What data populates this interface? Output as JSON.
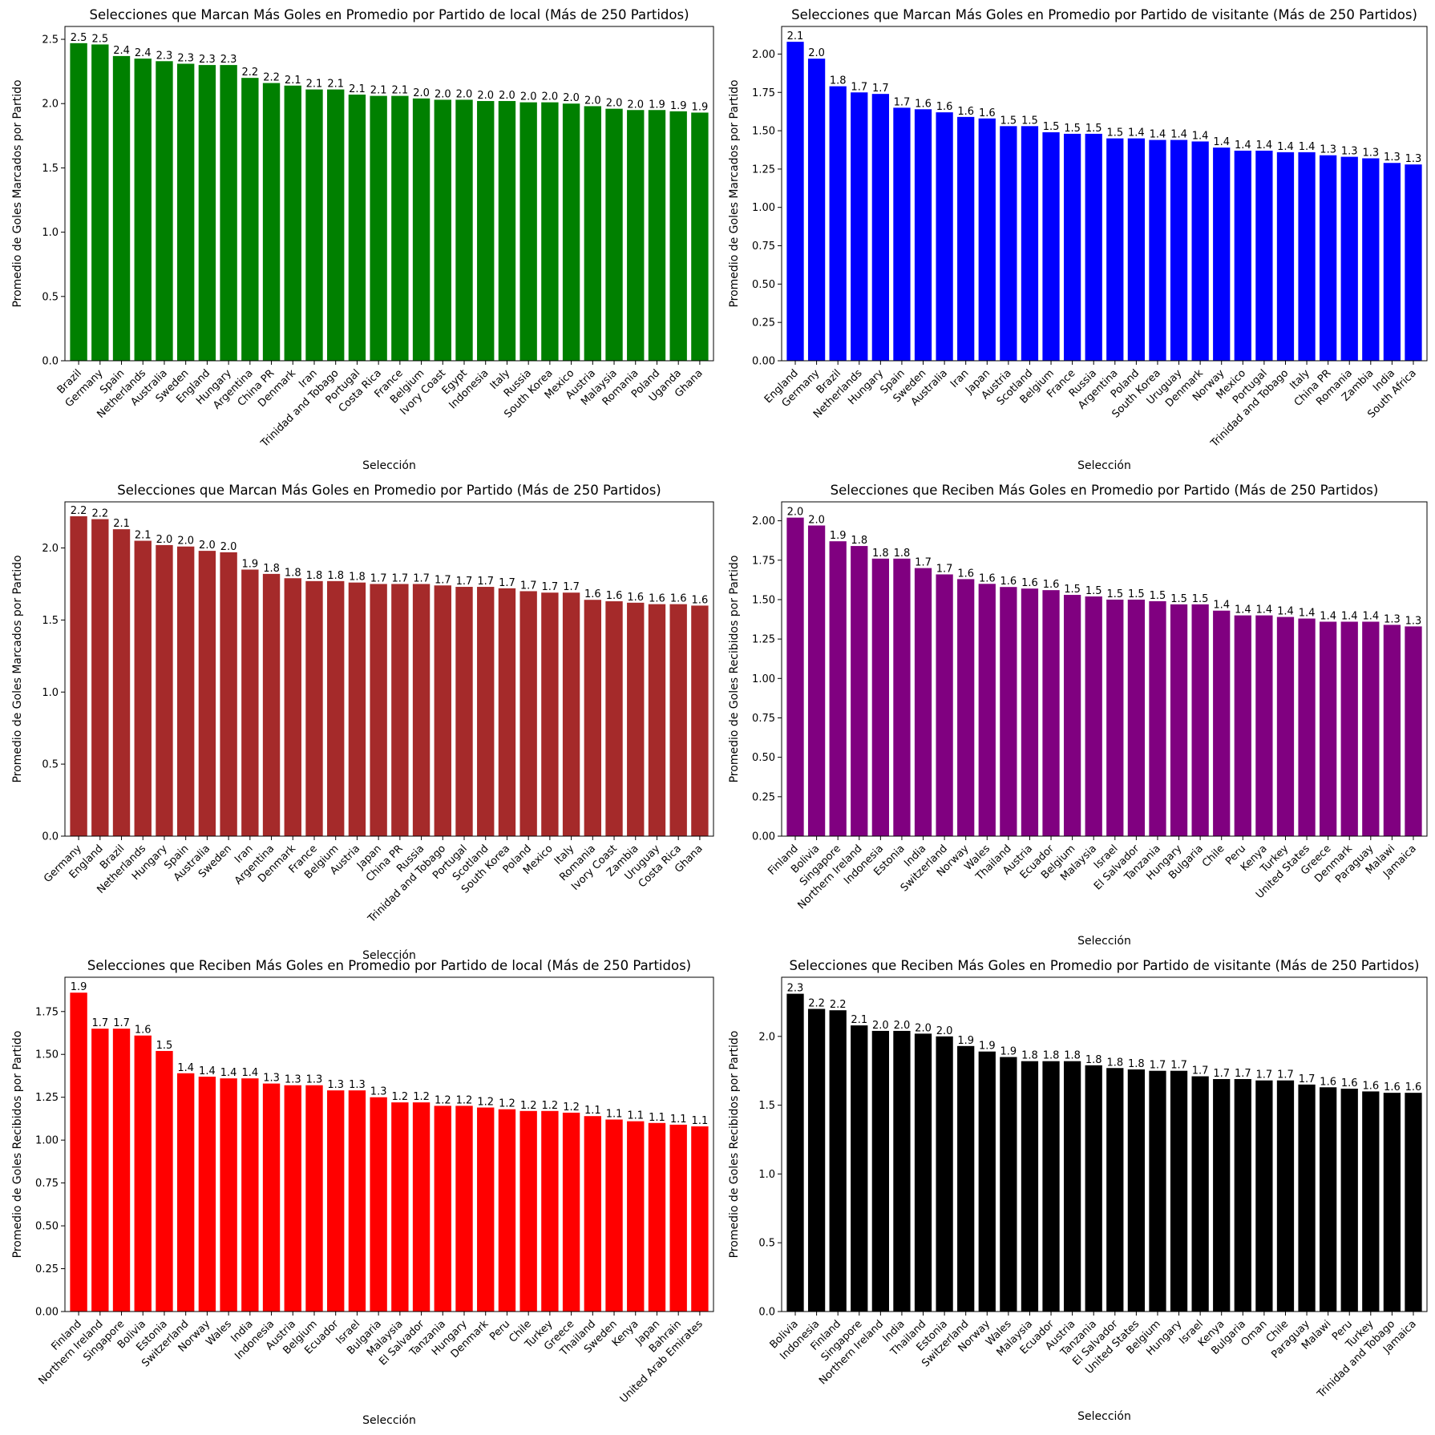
{
  "chart_data": [
    {
      "type": "bar",
      "title": "Selecciones que Marcan Más Goles en Promedio por Partido de local  (Más de 250 Partidos)",
      "xlabel": "Selección",
      "ylabel": "Promedio de Goles Marcados por Partido",
      "color": "#008000",
      "ylim": [
        0,
        2.6
      ],
      "yticks": [
        "0.0",
        "0.5",
        "1.0",
        "1.5",
        "2.0",
        "2.5"
      ],
      "categories": [
        "Brazil",
        "Germany",
        "Spain",
        "Netherlands",
        "Australia",
        "Sweden",
        "England",
        "Hungary",
        "Argentina",
        "China PR",
        "Denmark",
        "Iran",
        "Trinidad and Tobago",
        "Portugal",
        "Costa Rica",
        "France",
        "Belgium",
        "Ivory Coast",
        "Egypt",
        "Indonesia",
        "Italy",
        "Russia",
        "South Korea",
        "Mexico",
        "Austria",
        "Malaysia",
        "Romania",
        "Poland",
        "Uganda",
        "Ghana"
      ],
      "values": [
        2.47,
        2.46,
        2.37,
        2.35,
        2.33,
        2.31,
        2.3,
        2.3,
        2.2,
        2.16,
        2.14,
        2.11,
        2.11,
        2.07,
        2.06,
        2.06,
        2.04,
        2.03,
        2.03,
        2.02,
        2.02,
        2.01,
        2.01,
        2.0,
        1.98,
        1.96,
        1.95,
        1.95,
        1.94,
        1.93
      ],
      "labels": [
        "2.5",
        "2.5",
        "2.4",
        "2.4",
        "2.3",
        "2.3",
        "2.3",
        "2.3",
        "2.2",
        "2.2",
        "2.1",
        "2.1",
        "2.1",
        "2.1",
        "2.1",
        "2.1",
        "2.0",
        "2.0",
        "2.0",
        "2.0",
        "2.0",
        "2.0",
        "2.0",
        "2.0",
        "2.0",
        "2.0",
        "2.0",
        "1.9",
        "1.9",
        "1.9"
      ]
    },
    {
      "type": "bar",
      "title": "Selecciones que Marcan Más Goles en Promedio por Partido de visitante  (Más de 250 Partidos)",
      "xlabel": "Selección",
      "ylabel": "Promedio de Goles Marcados por Partido",
      "color": "#0000ff",
      "ylim": [
        0,
        2.18
      ],
      "yticks": [
        "0.00",
        "0.25",
        "0.50",
        "0.75",
        "1.00",
        "1.25",
        "1.50",
        "1.75",
        "2.00"
      ],
      "categories": [
        "England",
        "Germany",
        "Brazil",
        "Netherlands",
        "Hungary",
        "Spain",
        "Sweden",
        "Australia",
        "Iran",
        "Japan",
        "Austria",
        "Scotland",
        "Belgium",
        "France",
        "Russia",
        "Argentina",
        "Poland",
        "South Korea",
        "Uruguay",
        "Denmark",
        "Norway",
        "Mexico",
        "Portugal",
        "Trinidad and Tobago",
        "Italy",
        "China PR",
        "Romania",
        "Zambia",
        "India",
        "South Africa"
      ],
      "values": [
        2.08,
        1.97,
        1.79,
        1.75,
        1.74,
        1.65,
        1.64,
        1.62,
        1.59,
        1.58,
        1.53,
        1.53,
        1.49,
        1.48,
        1.48,
        1.45,
        1.45,
        1.44,
        1.44,
        1.43,
        1.39,
        1.37,
        1.37,
        1.36,
        1.36,
        1.34,
        1.33,
        1.32,
        1.29,
        1.28
      ],
      "labels": [
        "2.1",
        "2.0",
        "1.8",
        "1.7",
        "1.7",
        "1.7",
        "1.6",
        "1.6",
        "1.6",
        "1.6",
        "1.5",
        "1.5",
        "1.5",
        "1.5",
        "1.5",
        "1.5",
        "1.4",
        "1.4",
        "1.4",
        "1.4",
        "1.4",
        "1.4",
        "1.4",
        "1.4",
        "1.4",
        "1.3",
        "1.3",
        "1.3",
        "1.3",
        "1.3"
      ]
    },
    {
      "type": "bar",
      "title": "Selecciones que Marcan Más Goles en Promedio por Partido  (Más de 250 Partidos)",
      "xlabel": "Selección",
      "ylabel": "Promedio de Goles Marcados por Partido",
      "color": "#a52a2a",
      "ylim": [
        0,
        2.32
      ],
      "yticks": [
        "0.0",
        "0.5",
        "1.0",
        "1.5",
        "2.0"
      ],
      "categories": [
        "Germany",
        "England",
        "Brazil",
        "Netherlands",
        "Hungary",
        "Spain",
        "Australia",
        "Sweden",
        "Iran",
        "Argentina",
        "Denmark",
        "France",
        "Belgium",
        "Austria",
        "Japan",
        "China PR",
        "Russia",
        "Trinidad and Tobago",
        "Portugal",
        "Scotland",
        "South Korea",
        "Poland",
        "Mexico",
        "Italy",
        "Romania",
        "Ivory Coast",
        "Zambia",
        "Uruguay",
        "Costa Rica",
        "Ghana"
      ],
      "values": [
        2.22,
        2.2,
        2.13,
        2.05,
        2.02,
        2.01,
        1.98,
        1.97,
        1.85,
        1.82,
        1.79,
        1.77,
        1.77,
        1.76,
        1.75,
        1.75,
        1.75,
        1.74,
        1.73,
        1.73,
        1.72,
        1.7,
        1.69,
        1.69,
        1.64,
        1.63,
        1.62,
        1.61,
        1.61,
        1.6
      ],
      "labels": [
        "2.2",
        "2.2",
        "2.1",
        "2.1",
        "2.0",
        "2.0",
        "2.0",
        "2.0",
        "1.9",
        "1.8",
        "1.8",
        "1.8",
        "1.8",
        "1.8",
        "1.7",
        "1.7",
        "1.7",
        "1.7",
        "1.7",
        "1.7",
        "1.7",
        "1.7",
        "1.7",
        "1.7",
        "1.6",
        "1.6",
        "1.6",
        "1.6",
        "1.6",
        "1.6"
      ]
    },
    {
      "type": "bar",
      "title": "Selecciones que Reciben Más Goles en Promedio por Partido  (Más de 250 Partidos)",
      "xlabel": "Selección",
      "ylabel": "Promedio de Goles Recibidos por Partido",
      "color": "#800080",
      "ylim": [
        0,
        2.12
      ],
      "yticks": [
        "0.00",
        "0.25",
        "0.50",
        "0.75",
        "1.00",
        "1.25",
        "1.50",
        "1.75",
        "2.00"
      ],
      "categories": [
        "Finland",
        "Bolivia",
        "Singapore",
        "Northern Ireland",
        "Indonesia",
        "Estonia",
        "India",
        "Switzerland",
        "Norway",
        "Wales",
        "Thailand",
        "Austria",
        "Ecuador",
        "Belgium",
        "Malaysia",
        "Israel",
        "El Salvador",
        "Tanzania",
        "Hungary",
        "Bulgaria",
        "Chile",
        "Peru",
        "Kenya",
        "Turkey",
        "United States",
        "Greece",
        "Denmark",
        "Paraguay",
        "Malawi",
        "Jamaica"
      ],
      "values": [
        2.02,
        1.97,
        1.87,
        1.84,
        1.76,
        1.76,
        1.7,
        1.66,
        1.63,
        1.6,
        1.58,
        1.57,
        1.56,
        1.53,
        1.52,
        1.5,
        1.5,
        1.49,
        1.47,
        1.47,
        1.43,
        1.4,
        1.4,
        1.39,
        1.38,
        1.36,
        1.36,
        1.36,
        1.34,
        1.33
      ],
      "labels": [
        "2.0",
        "2.0",
        "1.9",
        "1.8",
        "1.8",
        "1.8",
        "1.7",
        "1.7",
        "1.6",
        "1.6",
        "1.6",
        "1.6",
        "1.6",
        "1.5",
        "1.5",
        "1.5",
        "1.5",
        "1.5",
        "1.5",
        "1.5",
        "1.4",
        "1.4",
        "1.4",
        "1.4",
        "1.4",
        "1.4",
        "1.4",
        "1.4",
        "1.3",
        "1.3"
      ]
    },
    {
      "type": "bar",
      "title": "Selecciones que Reciben Más Goles en Promedio por Partido de local (Más de 250 Partidos)",
      "xlabel": "Selección",
      "ylabel": "Promedio de Goles Recibidos por Partido",
      "color": "#ff0000",
      "ylim": [
        0,
        1.95
      ],
      "yticks": [
        "0.00",
        "0.25",
        "0.50",
        "0.75",
        "1.00",
        "1.25",
        "1.50",
        "1.75"
      ],
      "categories": [
        "Finland",
        "Northern Ireland",
        "Singapore",
        "Bolivia",
        "Estonia",
        "Switzerland",
        "Norway",
        "Wales",
        "India",
        "Indonesia",
        "Austria",
        "Belgium",
        "Ecuador",
        "Israel",
        "Bulgaria",
        "Malaysia",
        "El Salvador",
        "Tanzania",
        "Hungary",
        "Denmark",
        "Peru",
        "Chile",
        "Turkey",
        "Greece",
        "Thailand",
        "Sweden",
        "Kenya",
        "Japan",
        "Bahrain",
        "United Arab Emirates"
      ],
      "values": [
        1.86,
        1.65,
        1.65,
        1.61,
        1.52,
        1.39,
        1.37,
        1.36,
        1.36,
        1.33,
        1.32,
        1.32,
        1.29,
        1.29,
        1.25,
        1.22,
        1.22,
        1.2,
        1.2,
        1.19,
        1.18,
        1.17,
        1.17,
        1.16,
        1.14,
        1.12,
        1.11,
        1.1,
        1.09,
        1.08
      ],
      "labels": [
        "1.9",
        "1.7",
        "1.7",
        "1.6",
        "1.5",
        "1.4",
        "1.4",
        "1.4",
        "1.4",
        "1.3",
        "1.3",
        "1.3",
        "1.3",
        "1.3",
        "1.3",
        "1.2",
        "1.2",
        "1.2",
        "1.2",
        "1.2",
        "1.2",
        "1.2",
        "1.2",
        "1.2",
        "1.1",
        "1.1",
        "1.1",
        "1.1",
        "1.1",
        "1.1"
      ]
    },
    {
      "type": "bar",
      "title": "Selecciones que Reciben Más Goles en Promedio por Partido de visitante (Más de 250 Partidos)",
      "xlabel": "Selección",
      "ylabel": "Promedio de Goles Recibidos por Partido",
      "color": "#000000",
      "ylim": [
        0,
        2.43
      ],
      "yticks": [
        "0.0",
        "0.5",
        "1.0",
        "1.5",
        "2.0"
      ],
      "categories": [
        "Bolivia",
        "Indonesia",
        "Finland",
        "Singapore",
        "Northern Ireland",
        "India",
        "Thailand",
        "Estonia",
        "Switzerland",
        "Norway",
        "Wales",
        "Malaysia",
        "Ecuador",
        "Austria",
        "Tanzania",
        "El Salvador",
        "United States",
        "Belgium",
        "Hungary",
        "Israel",
        "Kenya",
        "Bulgaria",
        "Oman",
        "Chile",
        "Paraguay",
        "Malawi",
        "Peru",
        "Turkey",
        "Trinidad and Tobago",
        "Jamaica"
      ],
      "values": [
        2.31,
        2.2,
        2.19,
        2.08,
        2.04,
        2.04,
        2.02,
        2.0,
        1.93,
        1.89,
        1.85,
        1.82,
        1.82,
        1.82,
        1.79,
        1.77,
        1.76,
        1.75,
        1.75,
        1.71,
        1.69,
        1.69,
        1.68,
        1.68,
        1.65,
        1.63,
        1.62,
        1.6,
        1.59,
        1.59
      ],
      "labels": [
        "2.3",
        "2.2",
        "2.2",
        "2.1",
        "2.0",
        "2.0",
        "2.0",
        "2.0",
        "1.9",
        "1.9",
        "1.9",
        "1.8",
        "1.8",
        "1.8",
        "1.8",
        "1.8",
        "1.8",
        "1.7",
        "1.7",
        "1.7",
        "1.7",
        "1.7",
        "1.7",
        "1.7",
        "1.7",
        "1.6",
        "1.6",
        "1.6",
        "1.6",
        "1.6"
      ]
    }
  ]
}
